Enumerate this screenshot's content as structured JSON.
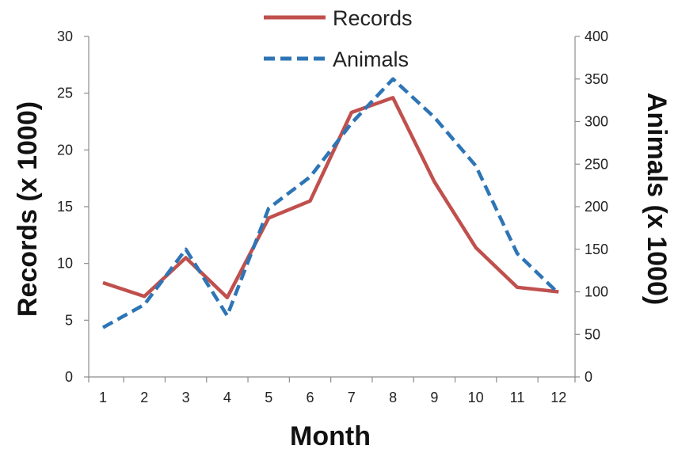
{
  "chart_data": {
    "type": "line",
    "x": [
      1,
      2,
      3,
      4,
      5,
      6,
      7,
      8,
      9,
      10,
      11,
      12
    ],
    "xlabel": "Month",
    "ylabel_left": "Records (x 1000)",
    "ylabel_right": "Animals (x 1000)",
    "ylim_left": [
      0,
      30
    ],
    "ylim_right": [
      0,
      400
    ],
    "yticks_left": [
      0,
      5,
      10,
      15,
      20,
      25,
      30
    ],
    "yticks_right": [
      0,
      50,
      100,
      150,
      200,
      250,
      300,
      350,
      400
    ],
    "grid": false,
    "legend_position": "top-center",
    "series": [
      {
        "name": "Records",
        "axis": "left",
        "style": "solid",
        "color": "#c0504d",
        "values": [
          8.3,
          7.1,
          10.5,
          7.0,
          14.0,
          15.5,
          23.3,
          24.6,
          17.2,
          11.4,
          7.9,
          7.5
        ]
      },
      {
        "name": "Animals",
        "axis": "right",
        "style": "dashed",
        "color": "#2e75b6",
        "values": [
          58,
          85,
          150,
          72,
          198,
          235,
          298,
          350,
          305,
          248,
          145,
          98
        ]
      }
    ]
  }
}
